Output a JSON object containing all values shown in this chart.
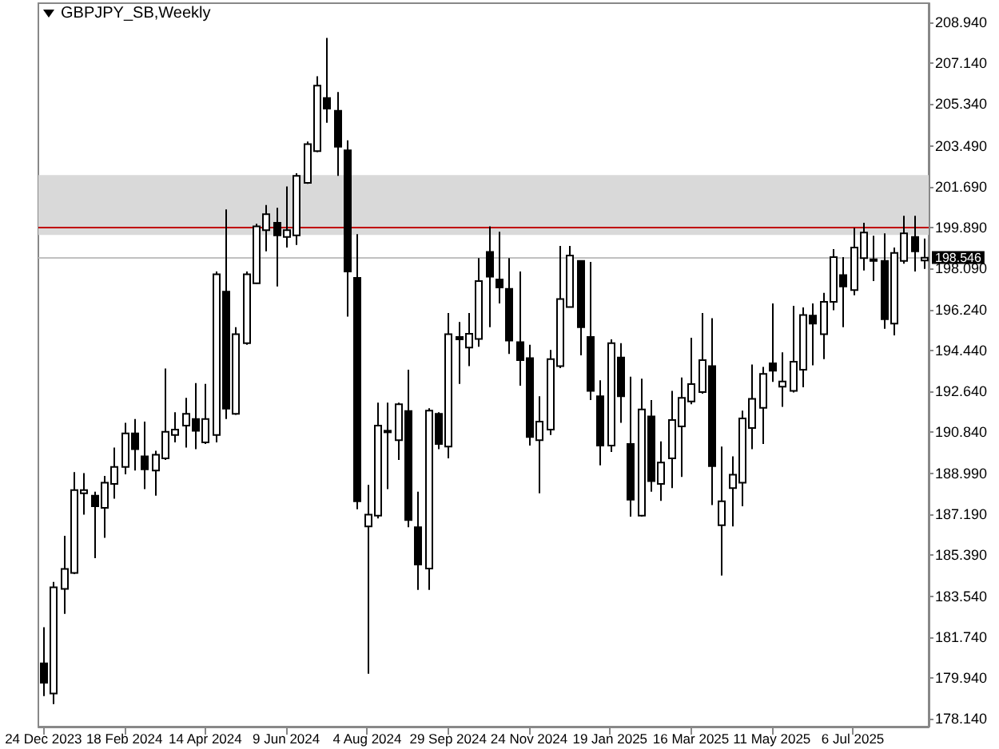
{
  "chart_data": {
    "type": "candlestick",
    "title": "GBPJPY_SB,Weekly",
    "categories": [
      "24 Dec 2023",
      null,
      null,
      null,
      null,
      null,
      null,
      null,
      "18 Feb 2024",
      null,
      null,
      null,
      null,
      null,
      null,
      null,
      "14 Apr 2024",
      null,
      null,
      null,
      null,
      null,
      null,
      null,
      "9 Jun 2024",
      null,
      null,
      null,
      null,
      null,
      null,
      null,
      "4 Aug 2024",
      null,
      null,
      null,
      null,
      null,
      null,
      null,
      "29 Sep 2024",
      null,
      null,
      null,
      null,
      null,
      null,
      null,
      "24 Nov 2024",
      null,
      null,
      null,
      null,
      null,
      null,
      null,
      "19 Jan 2025",
      null,
      null,
      null,
      null,
      null,
      null,
      null,
      "16 Mar 2025",
      null,
      null,
      null,
      null,
      null,
      null,
      null,
      "11 May 2025",
      null,
      null,
      null,
      null,
      null,
      null,
      null,
      "6 Jul 2025",
      null,
      null,
      null,
      null,
      null,
      null,
      null
    ],
    "series": [
      {
        "color": "#000000",
        "ohlc": [
          [
            180.6,
            182.2,
            179.15,
            179.74
          ],
          [
            179.27,
            184.2,
            178.8,
            183.96
          ],
          [
            183.89,
            186.24,
            182.79,
            184.78
          ],
          [
            184.6,
            189.06,
            184.55,
            188.26
          ],
          [
            188.12,
            189.01,
            187.18,
            188.26
          ],
          [
            188.02,
            188.19,
            185.25,
            187.55
          ],
          [
            187.48,
            188.89,
            186.15,
            188.59
          ],
          [
            188.54,
            190.14,
            187.88,
            189.29
          ],
          [
            189.29,
            191.24,
            188.96,
            190.77
          ],
          [
            190.77,
            191.41,
            189.13,
            190.07
          ],
          [
            189.76,
            191.29,
            188.31,
            189.18
          ],
          [
            189.13,
            190.0,
            188.02,
            189.83
          ],
          [
            189.67,
            193.64,
            189.6,
            190.84
          ],
          [
            190.7,
            191.71,
            190.37,
            190.94
          ],
          [
            191.12,
            192.34,
            190.14,
            191.64
          ],
          [
            191.41,
            193.0,
            190.07,
            190.89
          ],
          [
            190.37,
            192.96,
            190.3,
            191.41
          ],
          [
            190.7,
            197.93,
            190.37,
            197.81
          ],
          [
            197.04,
            200.68,
            191.41,
            191.87
          ],
          [
            191.64,
            195.47,
            191.59,
            195.16
          ],
          [
            194.76,
            197.93,
            194.69,
            197.81
          ],
          [
            197.41,
            200.04,
            197.39,
            199.93
          ],
          [
            199.76,
            200.87,
            198.82,
            200.47
          ],
          [
            200.09,
            200.75,
            197.27,
            199.53
          ],
          [
            199.46,
            201.69,
            198.99,
            199.76
          ],
          [
            199.53,
            202.28,
            199.11,
            202.16
          ],
          [
            201.85,
            203.68,
            201.81,
            203.57
          ],
          [
            203.26,
            206.57,
            203.21,
            206.15
          ],
          [
            205.61,
            208.26,
            204.51,
            205.14
          ],
          [
            205.04,
            205.87,
            202.16,
            203.45
          ],
          [
            203.29,
            203.73,
            195.94,
            197.93
          ],
          [
            197.65,
            199.58,
            187.42,
            187.77
          ],
          [
            186.66,
            188.49,
            180.14,
            187.18
          ],
          [
            187.13,
            192.13,
            187.01,
            191.12
          ],
          [
            190.84,
            192.13,
            188.31,
            190.89
          ],
          [
            190.47,
            192.13,
            189.6,
            192.06
          ],
          [
            191.76,
            193.59,
            186.62,
            186.94
          ],
          [
            186.62,
            188.19,
            183.85,
            184.97
          ],
          [
            184.79,
            191.88,
            183.85,
            191.78
          ],
          [
            191.64,
            191.71,
            190.07,
            190.3
          ],
          [
            190.19,
            196.1,
            189.67,
            195.16
          ],
          [
            195.04,
            195.7,
            192.96,
            194.93
          ],
          [
            194.57,
            196.1,
            193.75,
            195.18
          ],
          [
            194.95,
            198.52,
            194.6,
            197.51
          ],
          [
            198.8,
            199.93,
            195.47,
            197.7
          ],
          [
            197.58,
            199.69,
            196.52,
            197.23
          ],
          [
            197.16,
            198.52,
            194.29,
            194.88
          ],
          [
            194.81,
            197.93,
            192.88,
            194.01
          ],
          [
            194.1,
            194.69,
            190.23,
            190.61
          ],
          [
            190.47,
            192.41,
            188.12,
            191.29
          ],
          [
            190.94,
            194.46,
            190.7,
            194.06
          ],
          [
            193.75,
            199.06,
            193.66,
            196.71
          ],
          [
            196.36,
            199.06,
            196.34,
            198.64
          ],
          [
            198.4,
            198.4,
            194.22,
            195.47
          ],
          [
            195.04,
            198.36,
            192.25,
            192.65
          ],
          [
            192.41,
            193.12,
            189.36,
            190.23
          ],
          [
            190.23,
            194.93,
            189.95,
            194.76
          ],
          [
            194.13,
            194.76,
            191.24,
            192.41
          ],
          [
            190.3,
            193.28,
            187.09,
            187.84
          ],
          [
            187.13,
            193.19,
            187.09,
            191.83
          ],
          [
            191.52,
            192.25,
            188.19,
            188.66
          ],
          [
            188.54,
            190.42,
            187.79,
            189.48
          ],
          [
            189.67,
            192.65,
            188.35,
            191.36
          ],
          [
            191.08,
            193.24,
            188.85,
            192.34
          ],
          [
            192.18,
            195.0,
            192.06,
            192.95
          ],
          [
            192.6,
            196.1,
            192.53,
            194.01
          ],
          [
            193.75,
            195.87,
            187.6,
            189.32
          ],
          [
            186.71,
            190.19,
            184.48,
            187.77
          ],
          [
            188.35,
            189.76,
            186.66,
            188.94
          ],
          [
            188.59,
            191.78,
            187.55,
            191.43
          ],
          [
            191.01,
            193.82,
            190.07,
            192.3
          ],
          [
            191.9,
            193.71,
            190.3,
            193.4
          ],
          [
            193.87,
            196.52,
            193.05,
            193.54
          ],
          [
            192.84,
            194.36,
            191.95,
            193.07
          ],
          [
            192.65,
            196.41,
            192.58,
            193.94
          ],
          [
            193.59,
            196.34,
            192.81,
            196.01
          ],
          [
            195.98,
            196.52,
            193.78,
            195.63
          ],
          [
            195.16,
            196.99,
            194.06,
            196.59
          ],
          [
            196.59,
            198.92,
            196.22,
            198.57
          ],
          [
            197.77,
            198.57,
            195.47,
            197.27
          ],
          [
            197.11,
            199.86,
            196.88,
            198.99
          ],
          [
            198.52,
            200.09,
            197.98,
            199.65
          ],
          [
            198.47,
            199.51,
            197.51,
            198.4
          ],
          [
            198.4,
            199.62,
            195.4,
            195.82
          ],
          [
            195.63,
            198.99,
            195.11,
            198.75
          ],
          [
            198.4,
            200.4,
            198.28,
            199.62
          ],
          [
            199.46,
            200.4,
            197.93,
            198.82
          ],
          [
            198.42,
            199.39,
            198.05,
            198.546
          ]
        ]
      }
    ],
    "ylim": [
      177.8,
      209.8
    ],
    "yticks": [
      {
        "value": 178.14,
        "label": "178.140"
      },
      {
        "value": 179.94,
        "label": "179.940"
      },
      {
        "value": 181.74,
        "label": "181.740"
      },
      {
        "value": 183.54,
        "label": "183.540"
      },
      {
        "value": 185.39,
        "label": "185.390"
      },
      {
        "value": 187.19,
        "label": "187.190"
      },
      {
        "value": 188.99,
        "label": "188.990"
      },
      {
        "value": 190.84,
        "label": "190.840"
      },
      {
        "value": 192.64,
        "label": "192.640"
      },
      {
        "value": 194.44,
        "label": "194.440"
      },
      {
        "value": 196.24,
        "label": "196.240"
      },
      {
        "value": 198.09,
        "label": "198.090"
      },
      {
        "value": 199.89,
        "label": "199.890"
      },
      {
        "value": 201.69,
        "label": "201.690"
      },
      {
        "value": 203.49,
        "label": "203.490"
      },
      {
        "value": 205.34,
        "label": "205.340"
      },
      {
        "value": 207.14,
        "label": "207.140"
      },
      {
        "value": 208.94,
        "label": "208.940"
      }
    ],
    "ref_lines": [
      {
        "axis": "y",
        "value": 198.546,
        "label": "198.546",
        "color": "#c0c0c0"
      },
      {
        "axis": "y",
        "value": 199.9,
        "color": "#c00000"
      }
    ],
    "bands": [
      {
        "axis": "y",
        "from": 199.55,
        "to": 202.2,
        "color": "#d9d9d9"
      }
    ],
    "grid": false
  }
}
